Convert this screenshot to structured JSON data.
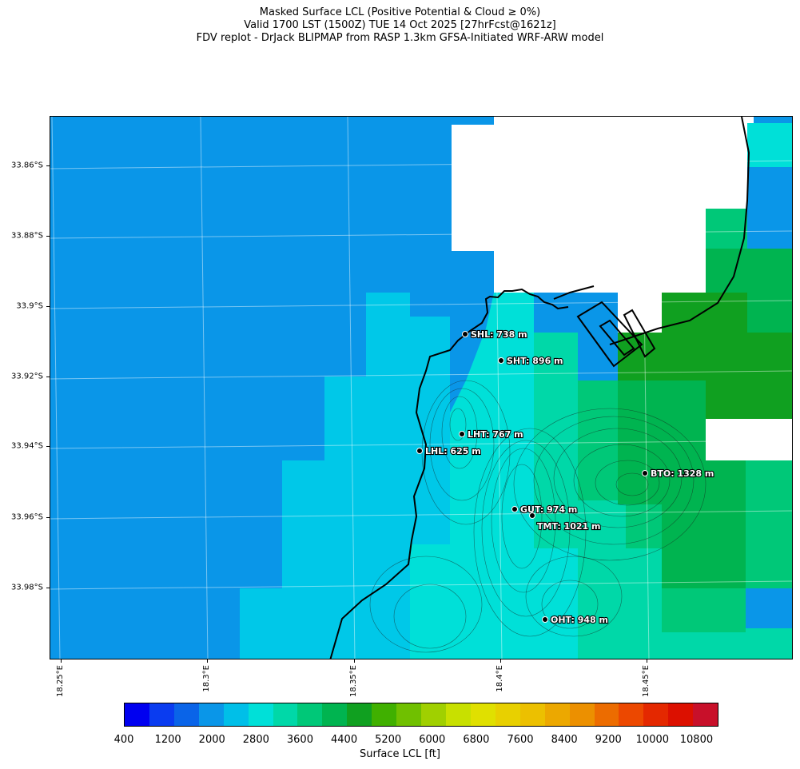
{
  "title": {
    "line1": "Masked Surface LCL (Positive Potential & Cloud ≥ 0%)",
    "line2": "Valid 1700 LST (1500Z) TUE 14 Oct 2025 [27hrFcst@1621z]",
    "line3": "FDV replot - DrJack BLIPMAP from RASP 1.3km GFSA-Initiated WRF-ARW model"
  },
  "lat_ticks": [
    "33.86°S",
    "33.88°S",
    "33.9°S",
    "33.92°S",
    "33.94°S",
    "33.96°S",
    "33.98°S"
  ],
  "lon_ticks": [
    "18.25°E",
    "18.3°E",
    "18.35°E",
    "18.4°E",
    "18.45°E"
  ],
  "stations": [
    {
      "id": "SHL",
      "label": "SHL: 738 m"
    },
    {
      "id": "SHT",
      "label": "SHT: 896 m"
    },
    {
      "id": "LHT",
      "label": "LHT: 767 m"
    },
    {
      "id": "LHL",
      "label": "LHL: 625 m"
    },
    {
      "id": "BTO",
      "label": "BTO: 1328 m"
    },
    {
      "id": "GUT",
      "label": "GUT: 974 m"
    },
    {
      "id": "TMT",
      "label": "TMT: 1021 m"
    },
    {
      "id": "OHT",
      "label": "OHT: 948 m"
    }
  ],
  "colorbar": {
    "label": "Surface LCL [ft]",
    "tick_labels": [
      "400",
      "1200",
      "2000",
      "2800",
      "3600",
      "4400",
      "5200",
      "6000",
      "6800",
      "7600",
      "8400",
      "9200",
      "10000",
      "10800"
    ],
    "colors": [
      "#0000f0",
      "#0a3cf0",
      "#0a64e8",
      "#0a96e8",
      "#00bfe8",
      "#00e0d8",
      "#00d8a8",
      "#00c878",
      "#00b450",
      "#10a020",
      "#40b000",
      "#70c000",
      "#a0d000",
      "#c8e000",
      "#e0e000",
      "#e8d000",
      "#ecc000",
      "#eca800",
      "#ec9000",
      "#ec6c00",
      "#ec4800",
      "#e42800",
      "#dc1000",
      "#c8102a"
    ],
    "min": 400,
    "max": 11200
  },
  "legend_colors": {
    "ocean": "#0a96e8",
    "near_coast": "#00c8e8",
    "cyan": "#00e0d8",
    "teal": "#00d8a8",
    "green": "#00c878",
    "dgreen": "#00b450",
    "darkest": "#10a020",
    "mask": "#ffffff"
  }
}
